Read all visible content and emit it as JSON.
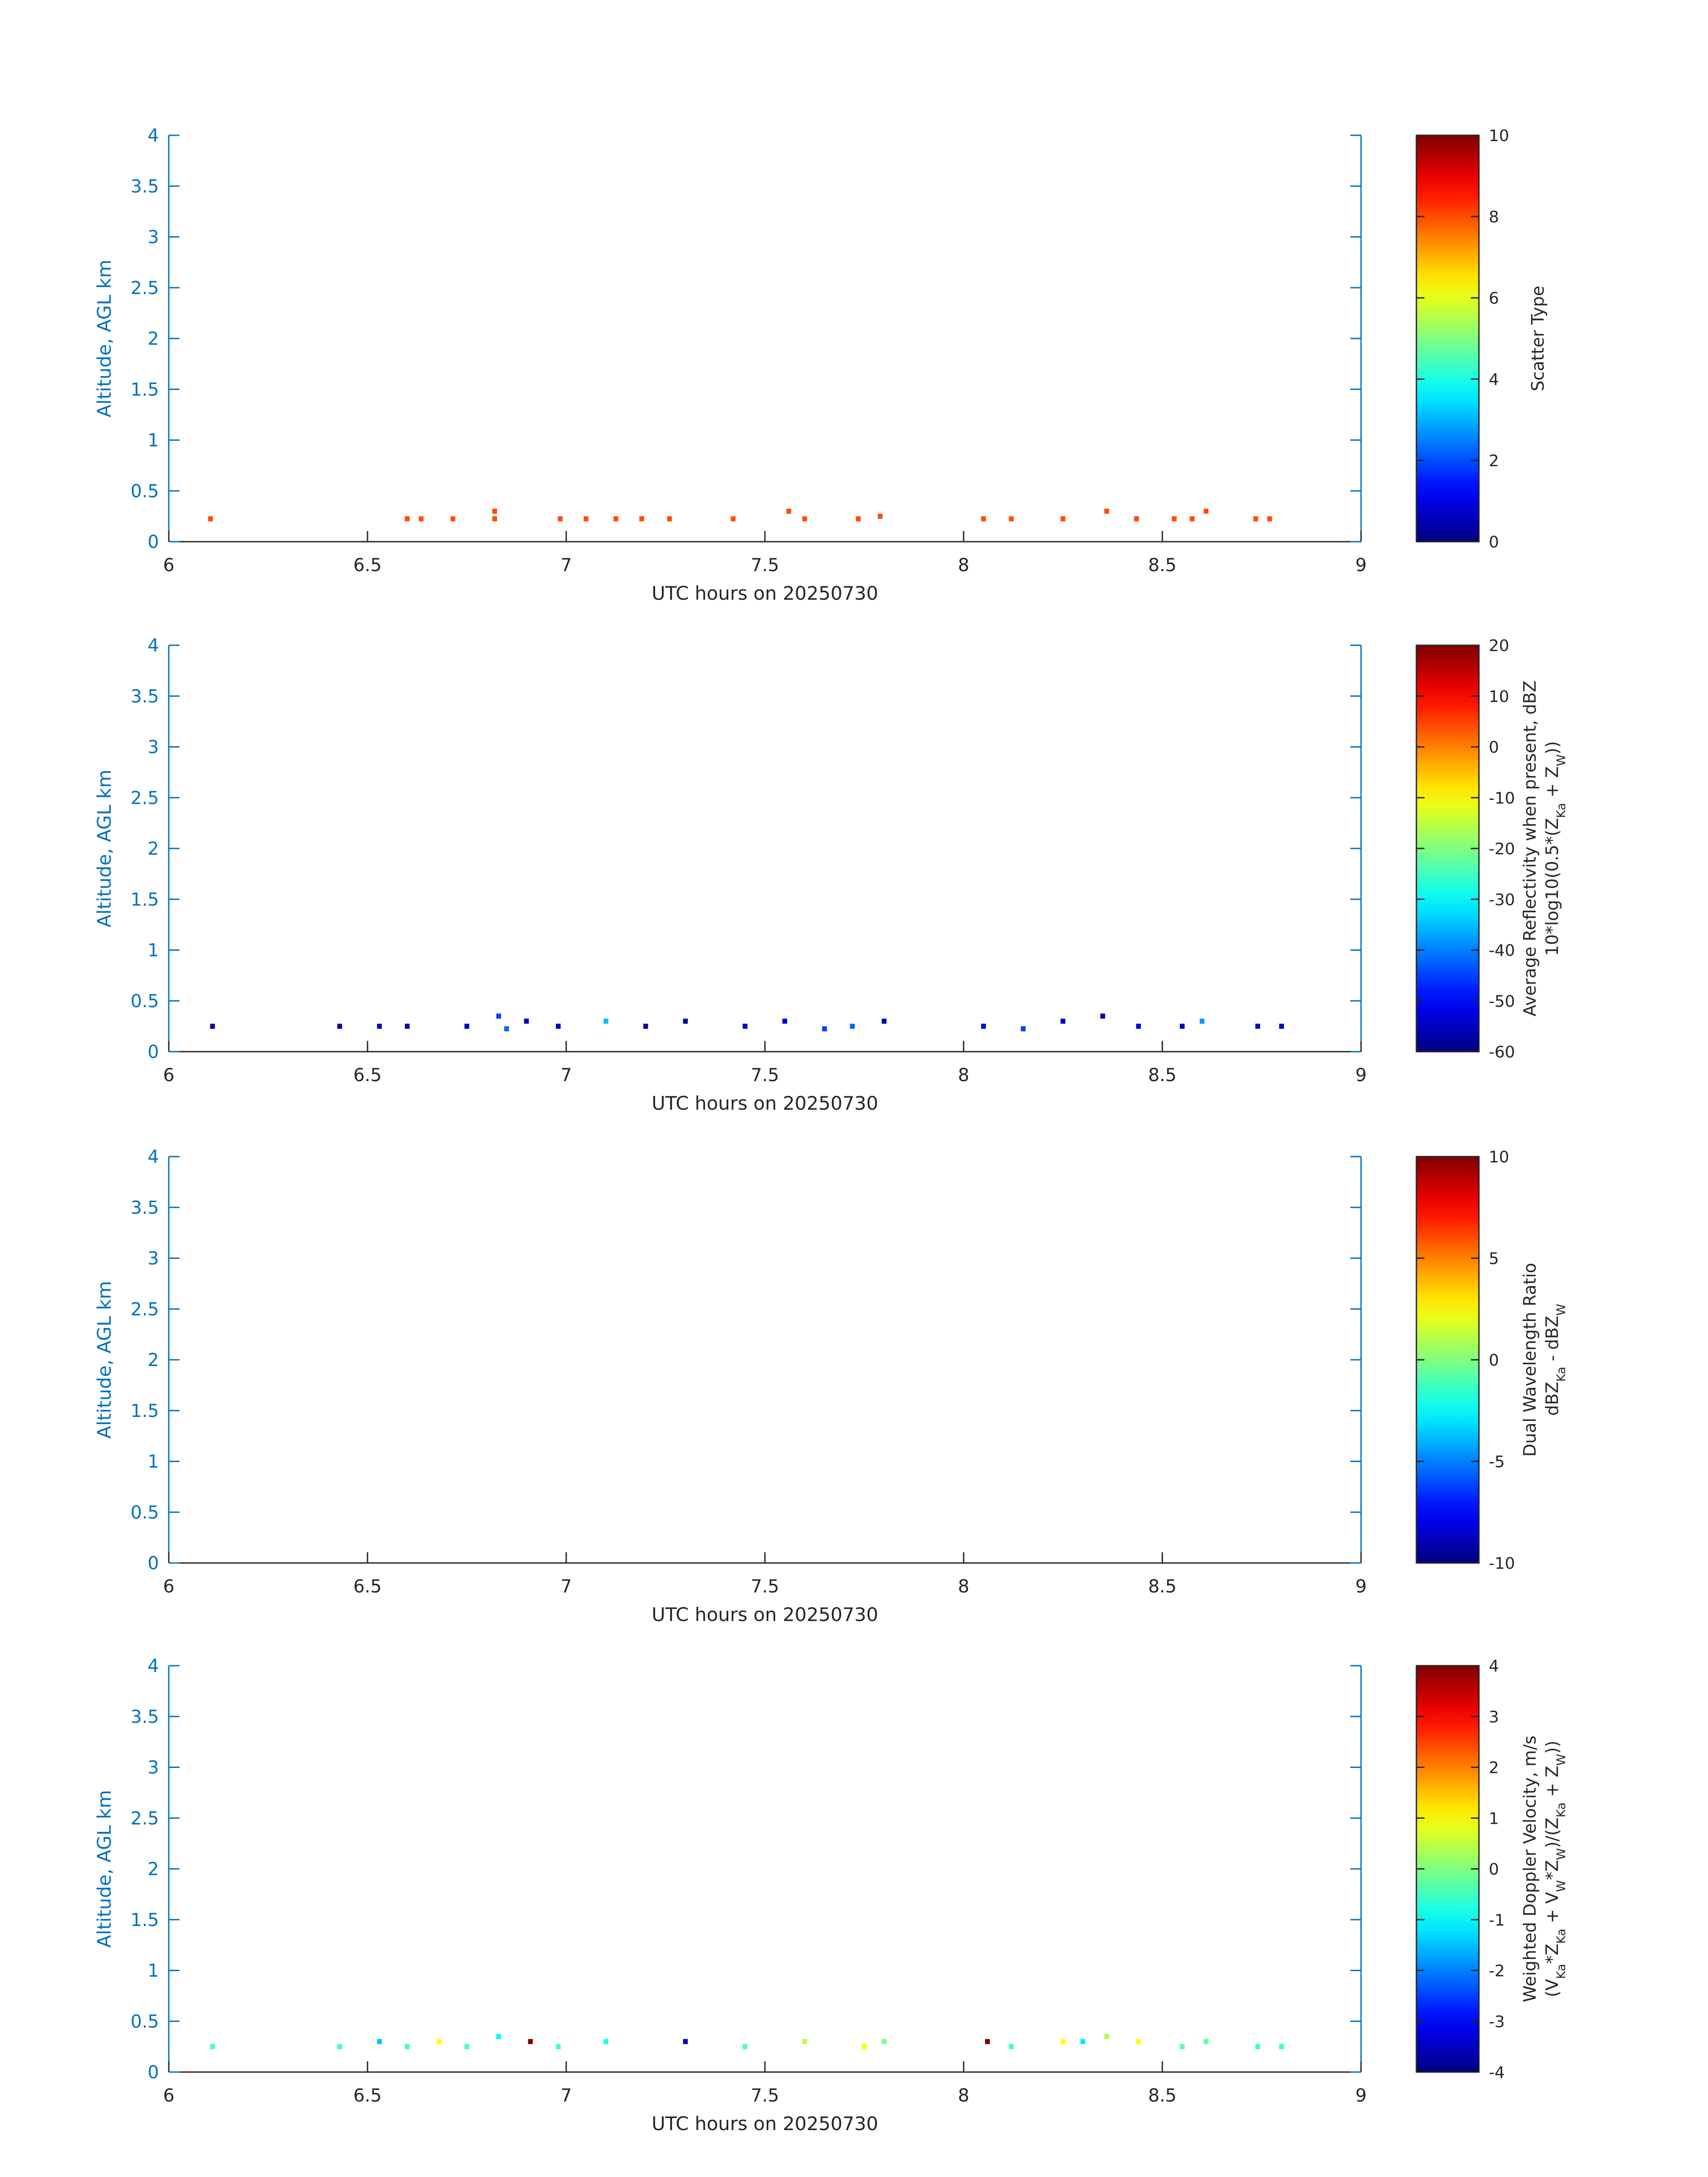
{
  "colormap": "jet",
  "colors": {
    "left_axis": "#0072BD",
    "text": "#262626",
    "frame": "#262626"
  },
  "chart_data": [
    {
      "type": "heatmap",
      "xlabel": "UTC hours on 20250730",
      "ylabel": "Altitude, AGL km",
      "xlim": [
        6,
        9
      ],
      "ylim": [
        0,
        4
      ],
      "x_ticks": [
        "6",
        "6.5",
        "7",
        "7.5",
        "8",
        "8.5",
        "9"
      ],
      "y_ticks": [
        "0",
        "0.5",
        "1",
        "1.5",
        "2",
        "2.5",
        "3",
        "3.5",
        "4"
      ],
      "colorbar": {
        "label_lines": [
          "Scatter Type"
        ],
        "range": [
          0,
          10
        ],
        "ticks": [
          "0",
          "2",
          "4",
          "6",
          "8",
          "10"
        ]
      },
      "cells": [
        {
          "x": 6.105,
          "y": 0.225,
          "v": 8
        },
        {
          "x": 6.6,
          "y": 0.225,
          "v": 8
        },
        {
          "x": 6.635,
          "y": 0.225,
          "v": 8
        },
        {
          "x": 6.715,
          "y": 0.225,
          "v": 8
        },
        {
          "x": 6.82,
          "y": 0.225,
          "v": 8
        },
        {
          "x": 6.82,
          "y": 0.3,
          "v": 8
        },
        {
          "x": 6.985,
          "y": 0.225,
          "v": 8
        },
        {
          "x": 7.05,
          "y": 0.225,
          "v": 8
        },
        {
          "x": 7.125,
          "y": 0.225,
          "v": 8
        },
        {
          "x": 7.19,
          "y": 0.225,
          "v": 8
        },
        {
          "x": 7.26,
          "y": 0.225,
          "v": 8
        },
        {
          "x": 7.42,
          "y": 0.225,
          "v": 8
        },
        {
          "x": 7.56,
          "y": 0.3,
          "v": 8
        },
        {
          "x": 7.6,
          "y": 0.225,
          "v": 8
        },
        {
          "x": 7.735,
          "y": 0.225,
          "v": 8
        },
        {
          "x": 7.79,
          "y": 0.25,
          "v": 8
        },
        {
          "x": 8.05,
          "y": 0.225,
          "v": 8
        },
        {
          "x": 8.12,
          "y": 0.225,
          "v": 8
        },
        {
          "x": 8.25,
          "y": 0.225,
          "v": 8
        },
        {
          "x": 8.36,
          "y": 0.3,
          "v": 8
        },
        {
          "x": 8.435,
          "y": 0.225,
          "v": 8
        },
        {
          "x": 8.53,
          "y": 0.225,
          "v": 8
        },
        {
          "x": 8.575,
          "y": 0.225,
          "v": 8
        },
        {
          "x": 8.61,
          "y": 0.3,
          "v": 8
        },
        {
          "x": 8.735,
          "y": 0.225,
          "v": 8
        },
        {
          "x": 8.77,
          "y": 0.225,
          "v": 8
        }
      ]
    },
    {
      "type": "heatmap",
      "xlabel": "UTC hours on 20250730",
      "ylabel": "Altitude, AGL km",
      "xlim": [
        6,
        9
      ],
      "ylim": [
        0,
        4
      ],
      "x_ticks": [
        "6",
        "6.5",
        "7",
        "7.5",
        "8",
        "8.5",
        "9"
      ],
      "y_ticks": [
        "0",
        "0.5",
        "1",
        "1.5",
        "2",
        "2.5",
        "3",
        "3.5",
        "4"
      ],
      "colorbar": {
        "label_lines": [
          "Average Reflectivity when present, dBZ",
          "10*log10(0.5*(Z",
          "Ka",
          " + Z",
          "W",
          "))"
        ],
        "range": [
          -60,
          20
        ],
        "ticks": [
          "-60",
          "-50",
          "-40",
          "-30",
          "-20",
          "-10",
          "0",
          "10",
          "20"
        ]
      },
      "cells": [
        {
          "x": 6.11,
          "y": 0.25,
          "v": -58
        },
        {
          "x": 6.43,
          "y": 0.25,
          "v": -58
        },
        {
          "x": 6.53,
          "y": 0.25,
          "v": -55
        },
        {
          "x": 6.6,
          "y": 0.25,
          "v": -57
        },
        {
          "x": 6.75,
          "y": 0.25,
          "v": -55
        },
        {
          "x": 6.83,
          "y": 0.35,
          "v": -45
        },
        {
          "x": 6.85,
          "y": 0.225,
          "v": -42
        },
        {
          "x": 6.9,
          "y": 0.3,
          "v": -55
        },
        {
          "x": 6.98,
          "y": 0.25,
          "v": -55
        },
        {
          "x": 7.1,
          "y": 0.3,
          "v": -35
        },
        {
          "x": 7.2,
          "y": 0.25,
          "v": -58
        },
        {
          "x": 7.3,
          "y": 0.3,
          "v": -57
        },
        {
          "x": 7.45,
          "y": 0.25,
          "v": -55
        },
        {
          "x": 7.55,
          "y": 0.3,
          "v": -52
        },
        {
          "x": 7.65,
          "y": 0.225,
          "v": -45
        },
        {
          "x": 7.72,
          "y": 0.25,
          "v": -42
        },
        {
          "x": 7.8,
          "y": 0.3,
          "v": -55
        },
        {
          "x": 8.05,
          "y": 0.25,
          "v": -52
        },
        {
          "x": 8.15,
          "y": 0.225,
          "v": -45
        },
        {
          "x": 8.25,
          "y": 0.3,
          "v": -55
        },
        {
          "x": 8.35,
          "y": 0.35,
          "v": -57
        },
        {
          "x": 8.44,
          "y": 0.25,
          "v": -52
        },
        {
          "x": 8.55,
          "y": 0.25,
          "v": -55
        },
        {
          "x": 8.6,
          "y": 0.3,
          "v": -38
        },
        {
          "x": 8.74,
          "y": 0.25,
          "v": -55
        },
        {
          "x": 8.8,
          "y": 0.25,
          "v": -55
        }
      ]
    },
    {
      "type": "heatmap",
      "xlabel": "UTC hours on 20250730",
      "ylabel": "Altitude, AGL km",
      "xlim": [
        6,
        9
      ],
      "ylim": [
        0,
        4
      ],
      "x_ticks": [
        "6",
        "6.5",
        "7",
        "7.5",
        "8",
        "8.5",
        "9"
      ],
      "y_ticks": [
        "0",
        "0.5",
        "1",
        "1.5",
        "2",
        "2.5",
        "3",
        "3.5",
        "4"
      ],
      "colorbar": {
        "label_lines": [
          "Dual Wavelength Ratio",
          "dBZ",
          "Ka",
          " - dBZ",
          "W"
        ],
        "range": [
          -10,
          10
        ],
        "ticks": [
          "-10",
          "-5",
          "0",
          "5",
          "10"
        ]
      },
      "cells": []
    },
    {
      "type": "heatmap",
      "xlabel": "UTC hours on 20250730",
      "ylabel": "Altitude, AGL km",
      "xlim": [
        6,
        9
      ],
      "ylim": [
        0,
        4
      ],
      "x_ticks": [
        "6",
        "6.5",
        "7",
        "7.5",
        "8",
        "8.5",
        "9"
      ],
      "y_ticks": [
        "0",
        "0.5",
        "1",
        "1.5",
        "2",
        "2.5",
        "3",
        "3.5",
        "4"
      ],
      "colorbar": {
        "label_lines": [
          "Weighted Doppler Velocity, m/s",
          "(V",
          "Ka",
          "*Z",
          "Ka",
          " + V",
          "W",
          "*Z",
          "W",
          ")/(Z",
          "Ka",
          " + Z",
          "W",
          "))"
        ],
        "range": [
          -4,
          4
        ],
        "ticks": [
          "-4",
          "-3",
          "-2",
          "-1",
          "0",
          "1",
          "2",
          "3",
          "4"
        ]
      },
      "cells": [
        {
          "x": 6.11,
          "y": 0.25,
          "v": -0.5
        },
        {
          "x": 6.43,
          "y": 0.25,
          "v": -0.5
        },
        {
          "x": 6.53,
          "y": 0.3,
          "v": -1.5
        },
        {
          "x": 6.6,
          "y": 0.25,
          "v": -0.5
        },
        {
          "x": 6.68,
          "y": 0.3,
          "v": 1
        },
        {
          "x": 6.75,
          "y": 0.25,
          "v": -0.5
        },
        {
          "x": 6.83,
          "y": 0.35,
          "v": -1
        },
        {
          "x": 6.91,
          "y": 0.3,
          "v": 4
        },
        {
          "x": 6.98,
          "y": 0.25,
          "v": -0.5
        },
        {
          "x": 7.1,
          "y": 0.3,
          "v": -0.8
        },
        {
          "x": 7.3,
          "y": 0.3,
          "v": -3.5
        },
        {
          "x": 7.45,
          "y": 0.25,
          "v": -0.4
        },
        {
          "x": 7.6,
          "y": 0.3,
          "v": 0.5
        },
        {
          "x": 7.75,
          "y": 0.25,
          "v": 1
        },
        {
          "x": 7.8,
          "y": 0.3,
          "v": 0
        },
        {
          "x": 8.06,
          "y": 0.3,
          "v": 4
        },
        {
          "x": 8.12,
          "y": 0.25,
          "v": -0.5
        },
        {
          "x": 8.25,
          "y": 0.3,
          "v": 1
        },
        {
          "x": 8.3,
          "y": 0.3,
          "v": -1.2
        },
        {
          "x": 8.36,
          "y": 0.35,
          "v": 0.3
        },
        {
          "x": 8.44,
          "y": 0.3,
          "v": 1
        },
        {
          "x": 8.55,
          "y": 0.25,
          "v": -0.3
        },
        {
          "x": 8.61,
          "y": 0.3,
          "v": -0.2
        },
        {
          "x": 8.74,
          "y": 0.25,
          "v": -0.5
        },
        {
          "x": 8.8,
          "y": 0.25,
          "v": -0.5
        }
      ]
    }
  ]
}
